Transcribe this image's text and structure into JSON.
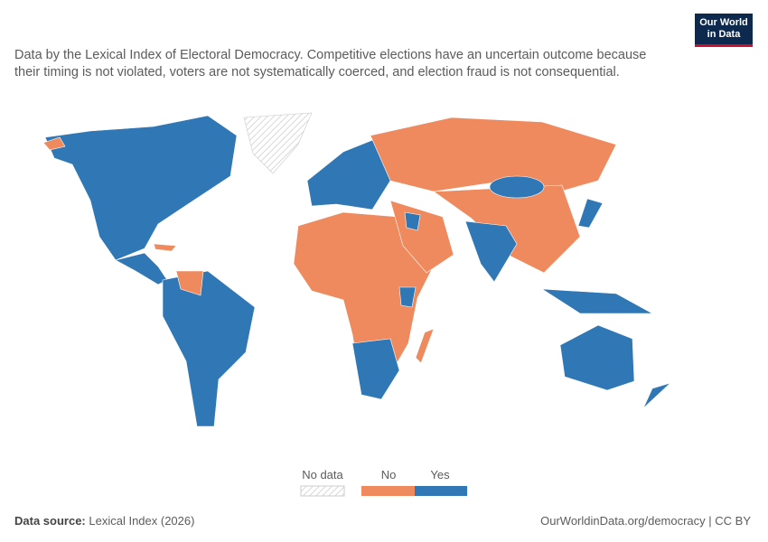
{
  "logo": {
    "line1": "Our World",
    "line2": "in Data"
  },
  "subtitle": "Data by the Lexical Index of Electoral Democracy. Competitive elections have an uncertain outcome because their timing is not violated, voters are not systematically coerced, and election fraud is not consequential.",
  "legend": {
    "items": [
      {
        "label": "No data",
        "color": "none"
      },
      {
        "label": "No",
        "color": "#ee8a5e"
      },
      {
        "label": "Yes",
        "color": "#2f77b5"
      }
    ]
  },
  "footer": {
    "source_label": "Data source:",
    "source": "Lexical Index (2026)",
    "url": "OurWorldinData.org/democracy | CC BY"
  }
}
